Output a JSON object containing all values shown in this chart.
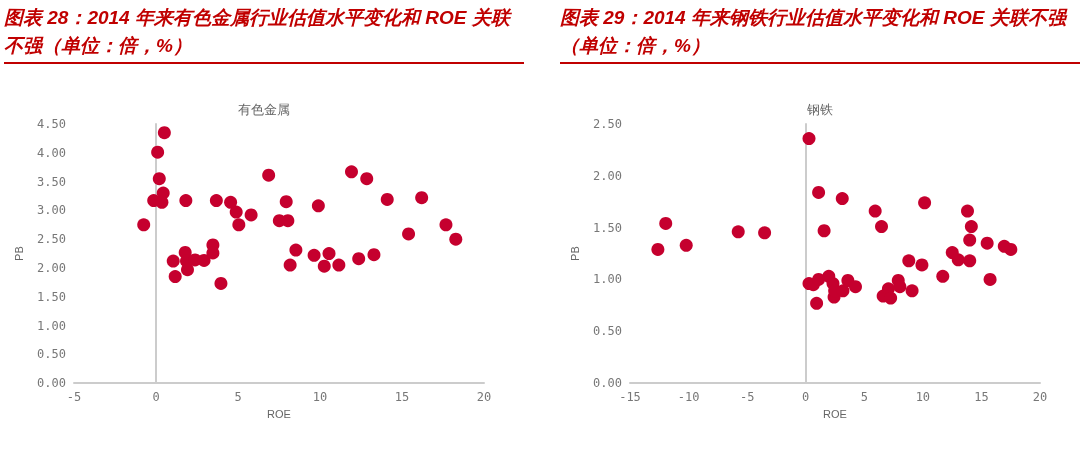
{
  "chart_data": [
    {
      "type": "scatter",
      "title": "图表 28：2014 年来有色金属行业估值水平变化和 ROE 关联不强（单位：倍，%）",
      "subtitle": "有色金属",
      "xlabel": "ROE",
      "ylabel": "PB",
      "marker": "circle",
      "xlim": [
        -5,
        20
      ],
      "xticks": [
        -5,
        0,
        5,
        10,
        15,
        20
      ],
      "ylim": [
        0,
        4.5
      ],
      "yticks": [
        {
          "value": 0,
          "label": "0.00"
        },
        {
          "value": 0.5,
          "label": "0.50"
        },
        {
          "value": 1,
          "label": "1.00"
        },
        {
          "value": 1.5,
          "label": "1.50"
        },
        {
          "value": 2,
          "label": "2.00"
        },
        {
          "value": 2.5,
          "label": "2.50"
        },
        {
          "value": 3,
          "label": "3.00"
        },
        {
          "value": 3.5,
          "label": "3.50"
        },
        {
          "value": 4,
          "label": "4.00"
        },
        {
          "value": 4.5,
          "label": "4.50"
        }
      ],
      "series": [
        {
          "color": "#c5002e",
          "x": [
            -0.75,
            -0.14,
            0.1,
            0.2,
            0.51,
            0.44,
            0.36,
            1.05,
            1.17,
            1.82,
            1.78,
            1.86,
            1.92,
            2.38,
            2.93,
            3.47,
            3.47,
            3.68,
            3.96,
            4.55,
            4.89,
            5.05,
            5.8,
            6.87,
            7.52,
            7.94,
            8.04,
            8.18,
            8.53,
            9.64,
            9.9,
            10.26,
            10.55,
            11.15,
            11.92,
            12.36,
            12.85,
            13.29,
            14.1,
            15.4,
            16.2,
            17.68,
            18.28
          ],
          "values": [
            2.75,
            3.17,
            4.01,
            3.55,
            4.35,
            3.3,
            3.14,
            2.12,
            1.85,
            3.17,
            2.27,
            2.12,
            1.97,
            2.14,
            2.13,
            2.4,
            2.26,
            3.17,
            1.73,
            3.14,
            2.97,
            2.75,
            2.92,
            3.61,
            2.82,
            3.15,
            2.82,
            2.05,
            2.31,
            2.22,
            3.08,
            2.03,
            2.25,
            2.05,
            3.67,
            2.16,
            3.55,
            2.23,
            3.19,
            2.59,
            3.22,
            2.75,
            2.5
          ]
        }
      ]
    },
    {
      "type": "scatter",
      "title": "图表 29：2014 年来钢铁行业估值水平变化和 ROE 关联不强（单位：倍，%）",
      "subtitle": "钢铁",
      "xlabel": "ROE",
      "ylabel": "PB",
      "marker": "circle",
      "xlim": [
        -15,
        20
      ],
      "xticks": [
        -15,
        -10,
        -5,
        0,
        5,
        10,
        15,
        20
      ],
      "ylim": [
        0,
        2.5
      ],
      "yticks": [
        {
          "value": 0,
          "label": "0.00"
        },
        {
          "value": 0.5,
          "label": "0.50"
        },
        {
          "value": 1,
          "label": "1.00"
        },
        {
          "value": 1.5,
          "label": "1.50"
        },
        {
          "value": 2,
          "label": "2.00"
        },
        {
          "value": 2.5,
          "label": "2.50"
        }
      ],
      "series": [
        {
          "color": "#c5002e",
          "x": [
            -12.62,
            -11.95,
            -10.2,
            -5.76,
            -3.51,
            0.28,
            0.28,
            0.65,
            1.1,
            1.1,
            0.93,
            1.57,
            1.97,
            2.33,
            2.42,
            2.47,
            3.12,
            3.18,
            3.6,
            4.25,
            5.93,
            6.47,
            6.61,
            7.06,
            7.25,
            7.9,
            8.04,
            8.8,
            9.08,
            9.92,
            10.15,
            11.7,
            12.51,
            13.02,
            13.81,
            14.0,
            14.14,
            14.0,
            15.49,
            15.74,
            16.95,
            17.51
          ],
          "values": [
            1.29,
            1.54,
            1.33,
            1.46,
            1.45,
            2.36,
            0.96,
            0.95,
            1.84,
            1.0,
            0.77,
            1.47,
            1.03,
            0.96,
            0.83,
            0.89,
            1.78,
            0.89,
            0.99,
            0.93,
            1.66,
            1.51,
            0.84,
            0.91,
            0.82,
            0.99,
            0.93,
            1.18,
            0.89,
            1.14,
            1.74,
            1.03,
            1.26,
            1.19,
            1.66,
            1.38,
            1.51,
            1.18,
            1.35,
            1.0,
            1.32,
            1.29
          ]
        }
      ]
    }
  ]
}
